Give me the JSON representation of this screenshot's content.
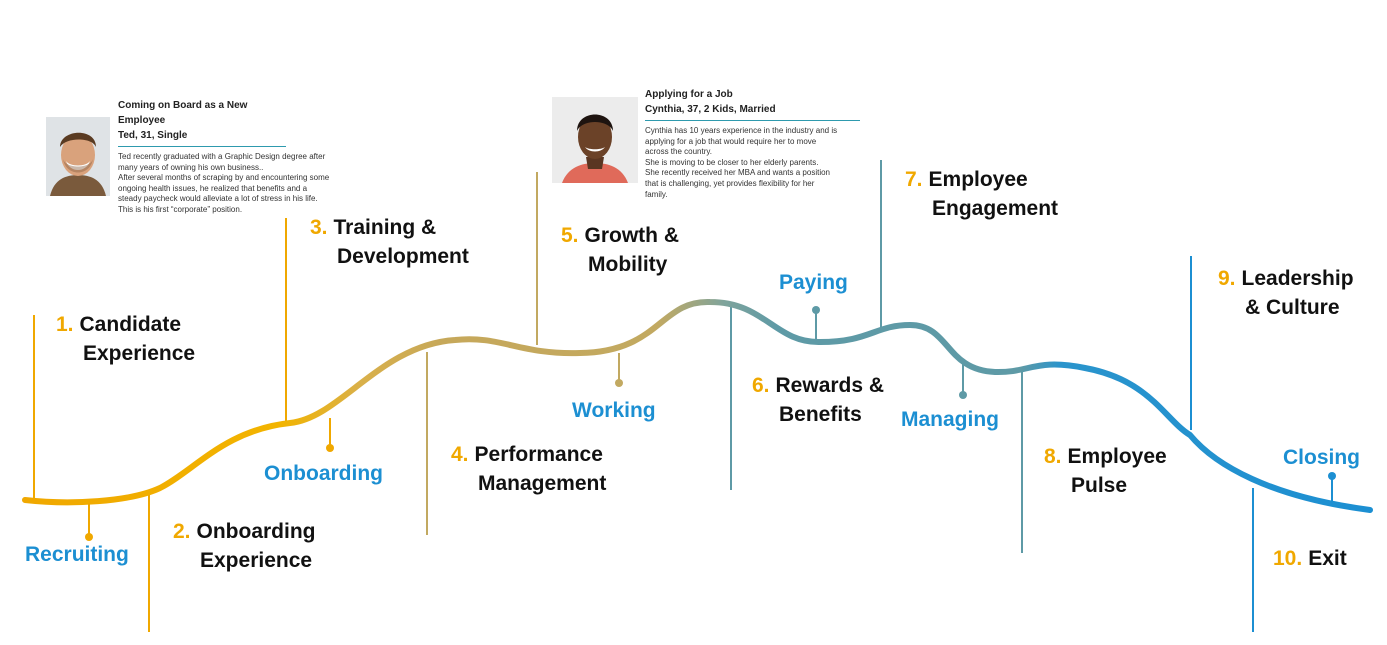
{
  "personas": [
    {
      "heading": "Coming on Board as a New Employee",
      "who": "Ted, 31, Single",
      "lines": [
        "Ted recently graduated with a Graphic Design degree after",
        "many years of owning his own business..",
        "After several months of scraping by and encountering some",
        "ongoing health issues, he realized that benefits and a",
        "steady paycheck would alleviate a lot of stress in his life.",
        "This is his first “corporate” position."
      ]
    },
    {
      "heading": "Applying for a Job",
      "who": "Cynthia, 37, 2 Kids, Married",
      "lines": [
        "Cynthia has 10 years experience in the industry and is",
        "applying for a job that would require her to move",
        "across the country.",
        "She is moving to be closer to her elderly parents.",
        "She recently received her MBA and wants a position",
        "that is challenging, yet provides flexibility for her",
        "family."
      ]
    }
  ],
  "stages": [
    {
      "num": "1.",
      "line1": "Candidate",
      "line2": "Experience"
    },
    {
      "num": "2.",
      "line1": "Onboarding",
      "line2": "Experience"
    },
    {
      "num": "3.",
      "line1": "Training &",
      "line2": "Development"
    },
    {
      "num": "4.",
      "line1": "Performance",
      "line2": "Management"
    },
    {
      "num": "5.",
      "line1": "Growth &",
      "line2": "Mobility"
    },
    {
      "num": "6.",
      "line1": "Rewards &",
      "line2": "Benefits"
    },
    {
      "num": "7.",
      "line1": "Employee",
      "line2": "Engagement"
    },
    {
      "num": "8.",
      "line1": "Employee",
      "line2": "Pulse"
    },
    {
      "num": "9.",
      "line1": "Leadership",
      "line2": "& Culture"
    },
    {
      "num": "10.",
      "line1": "Exit",
      "line2": ""
    }
  ],
  "phases": [
    "Recruiting",
    "Onboarding",
    "Working",
    "Paying",
    "Managing",
    "Closing"
  ],
  "colors": {
    "gold": "#F0A800",
    "olive": "#C2A961",
    "teal": "#5E9AA6",
    "blue": "#1C8FD2",
    "number": "#F0A800"
  }
}
